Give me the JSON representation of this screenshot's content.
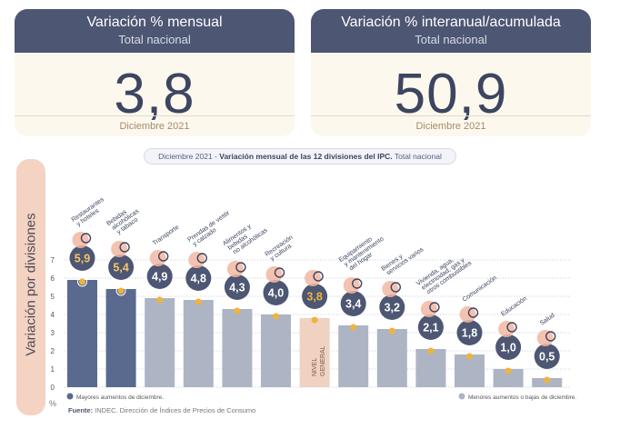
{
  "cards": [
    {
      "title": "Variación % mensual",
      "subtitle": "Total nacional",
      "value": "3,8",
      "footer": "Diciembre 2021"
    },
    {
      "title": "Variación % interanual/acumulada",
      "subtitle": "Total nacional",
      "value": "50,9",
      "footer": "Diciembre 2021"
    }
  ],
  "chart_title": {
    "prefix": "Diciembre 2021 - ",
    "bold": "Variación mensual de las 12 divisiones del IPC.",
    "suffix": " Total nacional"
  },
  "legend": {
    "high": "Mayores aumentos de diciembre.",
    "low": "Menores aumentos o bajas de diciembre."
  },
  "source": {
    "label": "Fuente:",
    "text": " INDEC. Dirección de Índices de Precios de Consumo"
  },
  "colors": {
    "high": "#5a6a8e",
    "low": "#adb4c4",
    "general": "#f0d1c2",
    "dot": "#f0b33c",
    "circle": "#4d5672"
  },
  "chart_data": {
    "type": "bar",
    "ylabel": "Variación por divisiones",
    "unit": "%",
    "ylim": [
      0,
      7
    ],
    "yticks": [
      0,
      1,
      2,
      3,
      4,
      5,
      6,
      7
    ],
    "categories": [
      {
        "name": [
          "Restaurantes",
          "y hoteles"
        ],
        "value": 5.9,
        "label": "5,9",
        "group": "high",
        "icon": "restaurant-icon"
      },
      {
        "name": [
          "Bebidas",
          "alcohólicas",
          "y tabaco"
        ],
        "value": 5.4,
        "label": "5,4",
        "group": "high",
        "icon": "wine-bottle-icon"
      },
      {
        "name": [
          "Transporte"
        ],
        "value": 4.9,
        "label": "4,9",
        "group": "low",
        "icon": "car-icon"
      },
      {
        "name": [
          "Prendas de vestir",
          "y calzado"
        ],
        "value": 4.8,
        "label": "4,8",
        "group": "low",
        "icon": "clothing-icon"
      },
      {
        "name": [
          "Alimentos y",
          "bebidas",
          "no alcohólicas"
        ],
        "value": 4.3,
        "label": "4,3",
        "group": "low",
        "icon": "food-icon"
      },
      {
        "name": [
          "Recreación",
          "y cultura"
        ],
        "value": 4.0,
        "label": "4,0",
        "group": "low",
        "icon": "beach-icon"
      },
      {
        "name": [
          "NIVEL",
          "GENERAL"
        ],
        "value": 3.8,
        "label": "3,8",
        "group": "general",
        "icon": "basket-icon"
      },
      {
        "name": [
          "Equipamiento",
          "y mantenimiento",
          "del hogar"
        ],
        "value": 3.4,
        "label": "3,4",
        "group": "low",
        "icon": "household-icon"
      },
      {
        "name": [
          "Bienes y",
          "servicios varios"
        ],
        "value": 3.2,
        "label": "3,2",
        "group": "low",
        "icon": "scissors-icon"
      },
      {
        "name": [
          "Vivienda, agua,",
          "electricidad, gas y",
          "otros combustibles"
        ],
        "value": 2.1,
        "label": "2,1",
        "group": "low",
        "icon": "lightbulb-icon"
      },
      {
        "name": [
          "Comunicación"
        ],
        "value": 1.8,
        "label": "1,8",
        "group": "low",
        "icon": "phone-icon"
      },
      {
        "name": [
          "Educación"
        ],
        "value": 1.0,
        "label": "1,0",
        "group": "low",
        "icon": "graduation-cap-icon"
      },
      {
        "name": [
          "Salud"
        ],
        "value": 0.5,
        "label": "0,5",
        "group": "low",
        "icon": "medical-cross-icon"
      }
    ]
  }
}
